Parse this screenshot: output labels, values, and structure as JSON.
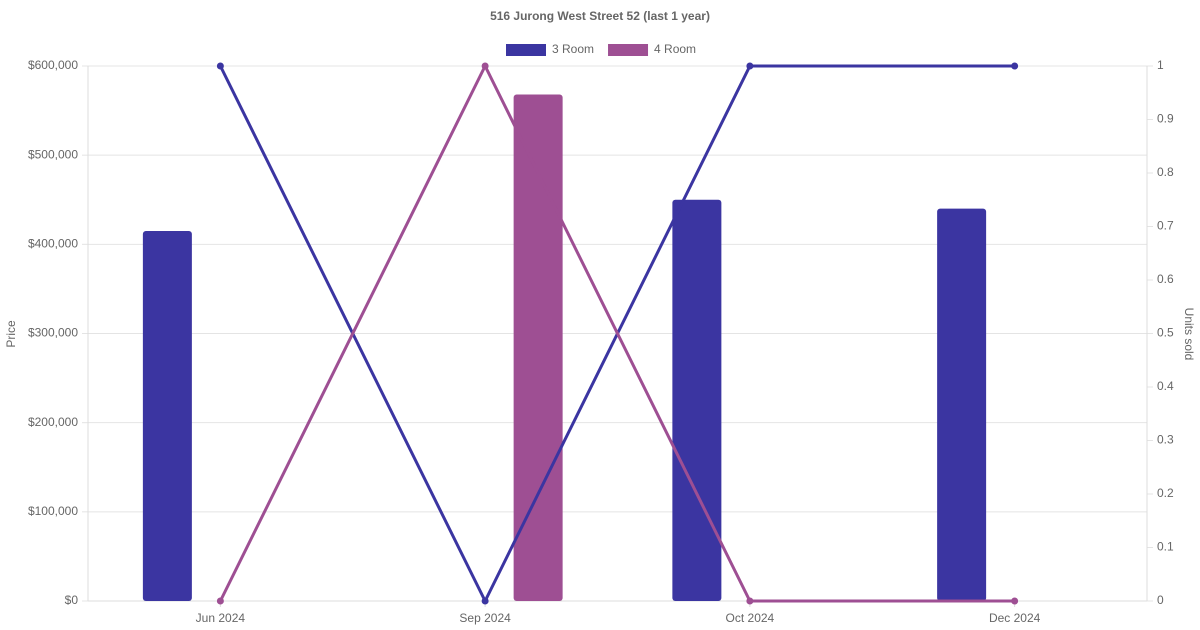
{
  "chart_data": {
    "type": "bar-line",
    "title": "516 Jurong West Street 52 (last 1 year)",
    "y_label": "Price",
    "y2_label": "Units sold",
    "categories": [
      "Jun 2024",
      "Sep 2024",
      "Oct 2024",
      "Dec 2024"
    ],
    "series": [
      {
        "name": "3 Room",
        "color": "#3b35a1",
        "values": [
          415000,
          null,
          450000,
          440000
        ],
        "units": [
          1,
          0,
          1,
          1
        ]
      },
      {
        "name": "4 Room",
        "color": "#9e4f93",
        "values": [
          null,
          568000,
          null,
          null
        ],
        "units": [
          0,
          1,
          0,
          0
        ]
      }
    ],
    "ylim": [
      0,
      600000
    ],
    "yticks": [
      {
        "value": 0,
        "label": "$0"
      },
      {
        "value": 100000,
        "label": "$100,000"
      },
      {
        "value": 200000,
        "label": "$200,000"
      },
      {
        "value": 300000,
        "label": "$300,000"
      },
      {
        "value": 400000,
        "label": "$400,000"
      },
      {
        "value": 500000,
        "label": "$500,000"
      },
      {
        "value": 600000,
        "label": "$600,000"
      }
    ],
    "y2lim": [
      0,
      1
    ],
    "y2ticks": [
      0,
      0.1,
      0.2,
      0.3,
      0.4,
      0.5,
      0.6,
      0.7,
      0.8,
      0.9,
      1
    ],
    "grid": true
  }
}
